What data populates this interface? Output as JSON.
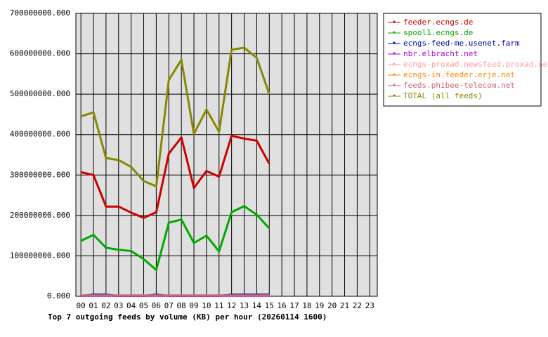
{
  "chart_data": {
    "type": "line",
    "title": "Top 7 outgoing feeds by volume (KB) per hour (20260114 1600)",
    "categories": [
      "00",
      "01",
      "02",
      "03",
      "04",
      "05",
      "06",
      "07",
      "08",
      "09",
      "10",
      "11",
      "12",
      "13",
      "14",
      "15",
      "16",
      "17",
      "18",
      "19",
      "20",
      "21",
      "22",
      "23"
    ],
    "ylim": [
      0,
      700000000
    ],
    "yticks": [
      {
        "value": 0,
        "label": "0.000"
      },
      {
        "value": 100000000,
        "label": "100000000.000"
      },
      {
        "value": 200000000,
        "label": "200000000.000"
      },
      {
        "value": 300000000,
        "label": "300000000.000"
      },
      {
        "value": 400000000,
        "label": "400000000.000"
      },
      {
        "value": 500000000,
        "label": "500000000.000"
      },
      {
        "value": 600000000,
        "label": "600000000.000"
      },
      {
        "value": 700000000,
        "label": "700000000.000"
      }
    ],
    "grid": true,
    "legend": "right",
    "series": [
      {
        "name": "feeder.ecngs.de",
        "color": "#cc0000",
        "values": [
          307000000,
          300000000,
          222000000,
          222000000,
          207000000,
          194000000,
          208000000,
          353000000,
          393000000,
          268000000,
          310000000,
          296000000,
          397000000,
          390000000,
          385000000,
          328000000,
          null,
          null,
          null,
          null,
          null,
          null,
          null,
          null
        ]
      },
      {
        "name": "spool1.ecngs.de",
        "color": "#00aa00",
        "values": [
          137000000,
          152000000,
          120000000,
          115000000,
          112000000,
          92000000,
          65000000,
          182000000,
          190000000,
          132000000,
          150000000,
          111000000,
          208000000,
          223000000,
          202000000,
          168000000,
          null,
          null,
          null,
          null,
          null,
          null,
          null,
          null
        ]
      },
      {
        "name": "ecngs-feed-me.usenet.farm",
        "color": "#0000aa",
        "values": [
          1000000,
          4000000,
          4000000,
          1000000,
          1000000,
          1000000,
          4000000,
          1000000,
          1000000,
          1000000,
          1000000,
          1000000,
          4000000,
          4000000,
          4000000,
          4000000,
          null,
          null,
          null,
          null,
          null,
          null,
          null,
          null
        ]
      },
      {
        "name": "nbr.elbracht.net",
        "color": "#aa00cc",
        "values": [
          1000000,
          1000000,
          1000000,
          1000000,
          1000000,
          1000000,
          1000000,
          1000000,
          1000000,
          1000000,
          1000000,
          1000000,
          1000000,
          1000000,
          1000000,
          1000000,
          null,
          null,
          null,
          null,
          null,
          null,
          null,
          null
        ]
      },
      {
        "name": "ecngs-proxad.newsfeed.proxad.net",
        "color": "#ff9999",
        "values": [
          2000000,
          2000000,
          2000000,
          2000000,
          2000000,
          2000000,
          2000000,
          2000000,
          2000000,
          2000000,
          2000000,
          2000000,
          2000000,
          2000000,
          2000000,
          2000000,
          null,
          null,
          null,
          null,
          null,
          null,
          null,
          null
        ]
      },
      {
        "name": "ecngs-in.feeder.erje.net",
        "color": "#ff8800",
        "values": [
          2000000,
          2000000,
          2000000,
          2000000,
          2000000,
          2000000,
          2000000,
          2000000,
          2000000,
          2000000,
          2000000,
          2000000,
          2000000,
          2000000,
          2000000,
          2000000,
          null,
          null,
          null,
          null,
          null,
          null,
          null,
          null
        ]
      },
      {
        "name": "feeds.phibee-telecom.net",
        "color": "#cc6677",
        "values": [
          2000000,
          2000000,
          2000000,
          2000000,
          2000000,
          2000000,
          2000000,
          2000000,
          2000000,
          2000000,
          2000000,
          2000000,
          2000000,
          2000000,
          2000000,
          2000000,
          null,
          null,
          null,
          null,
          null,
          null,
          null,
          null
        ]
      },
      {
        "name": "TOTAL (all feeds)",
        "color": "#888800",
        "values": [
          445000000,
          455000000,
          342000000,
          337000000,
          320000000,
          285000000,
          272000000,
          535000000,
          585000000,
          402000000,
          462000000,
          407000000,
          610000000,
          615000000,
          590000000,
          500000000,
          null,
          null,
          null,
          null,
          null,
          null,
          null,
          null
        ]
      }
    ]
  }
}
